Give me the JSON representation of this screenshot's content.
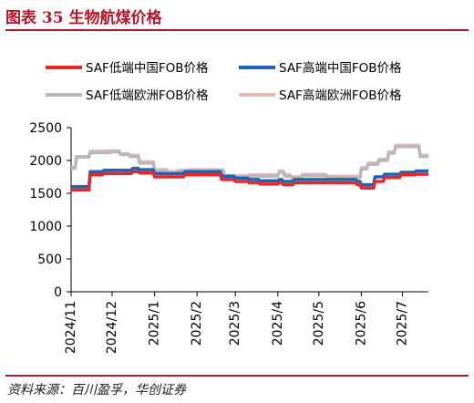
{
  "figure": {
    "title": "图表  35    生物航煤价格",
    "source": "资料来源：百川盈孚，华创证券"
  },
  "colors": {
    "accent": "#b3172b",
    "low_cn": "#e8262b",
    "high_cn": "#1f63b5",
    "low_eu": "#b9b9bb",
    "high_eu": "#e6b8b8"
  },
  "chart_data": {
    "type": "line",
    "title": "",
    "xlabel": "",
    "ylabel": "",
    "ylim": [
      0,
      2500
    ],
    "y_ticks": [
      0,
      500,
      1000,
      1500,
      2000,
      2500
    ],
    "x_range": [
      "2024-11-01",
      "2025-07-20"
    ],
    "x_ticks": [
      "2024/11",
      "2024/12",
      "2025/1",
      "2025/2",
      "2025/3",
      "2025/4",
      "2025/5",
      "2025/6",
      "2025/7"
    ],
    "x_tick_dates": [
      "2024-11-01",
      "2024-12-01",
      "2025-01-01",
      "2025-02-01",
      "2025-03-01",
      "2025-04-01",
      "2025-05-01",
      "2025-06-01",
      "2025-07-01"
    ],
    "grid": false,
    "legend_position": "top",
    "series": [
      {
        "name": "SAF低端中国FOB价格",
        "color": "#e8262b",
        "points": [
          [
            "2024-11-01",
            1550
          ],
          [
            "2024-11-14",
            1550
          ],
          [
            "2024-11-15",
            1780
          ],
          [
            "2024-11-24",
            1780
          ],
          [
            "2024-11-25",
            1800
          ],
          [
            "2024-12-15",
            1800
          ],
          [
            "2024-12-16",
            1830
          ],
          [
            "2024-12-20",
            1830
          ],
          [
            "2024-12-21",
            1810
          ],
          [
            "2024-12-31",
            1810
          ],
          [
            "2025-01-01",
            1750
          ],
          [
            "2025-01-22",
            1750
          ],
          [
            "2025-01-23",
            1780
          ],
          [
            "2025-02-18",
            1780
          ],
          [
            "2025-02-19",
            1710
          ],
          [
            "2025-02-28",
            1710
          ],
          [
            "2025-03-01",
            1680
          ],
          [
            "2025-03-10",
            1680
          ],
          [
            "2025-03-11",
            1660
          ],
          [
            "2025-03-18",
            1660
          ],
          [
            "2025-03-19",
            1640
          ],
          [
            "2025-04-01",
            1640
          ],
          [
            "2025-04-02",
            1660
          ],
          [
            "2025-04-04",
            1660
          ],
          [
            "2025-04-05",
            1630
          ],
          [
            "2025-04-12",
            1630
          ],
          [
            "2025-04-13",
            1660
          ],
          [
            "2025-05-28",
            1660
          ],
          [
            "2025-05-29",
            1630
          ],
          [
            "2025-05-31",
            1630
          ],
          [
            "2025-06-01",
            1580
          ],
          [
            "2025-06-10",
            1580
          ],
          [
            "2025-06-11",
            1680
          ],
          [
            "2025-06-17",
            1680
          ],
          [
            "2025-06-18",
            1740
          ],
          [
            "2025-06-29",
            1740
          ],
          [
            "2025-06-30",
            1780
          ],
          [
            "2025-07-10",
            1780
          ],
          [
            "2025-07-11",
            1790
          ],
          [
            "2025-07-20",
            1790
          ]
        ]
      },
      {
        "name": "SAF高端中国FOB价格",
        "color": "#1f63b5",
        "points": [
          [
            "2024-11-01",
            1600
          ],
          [
            "2024-11-14",
            1600
          ],
          [
            "2024-11-15",
            1830
          ],
          [
            "2024-11-24",
            1830
          ],
          [
            "2024-11-25",
            1850
          ],
          [
            "2024-12-15",
            1850
          ],
          [
            "2024-12-16",
            1880
          ],
          [
            "2024-12-20",
            1880
          ],
          [
            "2024-12-21",
            1860
          ],
          [
            "2024-12-31",
            1860
          ],
          [
            "2025-01-01",
            1800
          ],
          [
            "2025-01-22",
            1800
          ],
          [
            "2025-01-23",
            1830
          ],
          [
            "2025-02-18",
            1830
          ],
          [
            "2025-02-19",
            1760
          ],
          [
            "2025-02-28",
            1760
          ],
          [
            "2025-03-01",
            1730
          ],
          [
            "2025-03-10",
            1730
          ],
          [
            "2025-03-11",
            1710
          ],
          [
            "2025-03-18",
            1710
          ],
          [
            "2025-03-19",
            1690
          ],
          [
            "2025-04-01",
            1690
          ],
          [
            "2025-04-02",
            1710
          ],
          [
            "2025-04-04",
            1710
          ],
          [
            "2025-04-05",
            1680
          ],
          [
            "2025-04-12",
            1680
          ],
          [
            "2025-04-13",
            1710
          ],
          [
            "2025-05-28",
            1710
          ],
          [
            "2025-05-29",
            1680
          ],
          [
            "2025-05-31",
            1680
          ],
          [
            "2025-06-01",
            1630
          ],
          [
            "2025-06-10",
            1630
          ],
          [
            "2025-06-11",
            1750
          ],
          [
            "2025-06-17",
            1750
          ],
          [
            "2025-06-18",
            1790
          ],
          [
            "2025-06-29",
            1790
          ],
          [
            "2025-06-30",
            1820
          ],
          [
            "2025-07-10",
            1820
          ],
          [
            "2025-07-11",
            1840
          ],
          [
            "2025-07-20",
            1840
          ]
        ]
      },
      {
        "name": "SAF低端欧洲FOB价格",
        "color": "#b9b9bb",
        "points": [
          [
            "2024-11-01",
            1880
          ],
          [
            "2024-11-04",
            1880
          ],
          [
            "2024-11-05",
            2050
          ],
          [
            "2024-11-14",
            2050
          ],
          [
            "2024-11-15",
            2120
          ],
          [
            "2024-11-29",
            2120
          ],
          [
            "2024-11-30",
            2130
          ],
          [
            "2024-12-06",
            2130
          ],
          [
            "2024-12-07",
            2090
          ],
          [
            "2024-12-13",
            2090
          ],
          [
            "2024-12-14",
            2060
          ],
          [
            "2024-12-20",
            2060
          ],
          [
            "2024-12-21",
            1960
          ],
          [
            "2024-12-31",
            1960
          ],
          [
            "2025-01-01",
            1840
          ],
          [
            "2025-01-10",
            1840
          ],
          [
            "2025-01-11",
            1810
          ],
          [
            "2025-01-17",
            1810
          ],
          [
            "2025-01-18",
            1830
          ],
          [
            "2025-01-24",
            1830
          ],
          [
            "2025-01-25",
            1840
          ],
          [
            "2025-02-20",
            1840
          ],
          [
            "2025-02-21",
            1750
          ],
          [
            "2025-03-10",
            1750
          ],
          [
            "2025-03-11",
            1760
          ],
          [
            "2025-04-01",
            1760
          ],
          [
            "2025-04-02",
            1820
          ],
          [
            "2025-04-05",
            1820
          ],
          [
            "2025-04-06",
            1760
          ],
          [
            "2025-04-10",
            1760
          ],
          [
            "2025-04-11",
            1730
          ],
          [
            "2025-04-18",
            1730
          ],
          [
            "2025-04-19",
            1770
          ],
          [
            "2025-05-06",
            1770
          ],
          [
            "2025-05-07",
            1740
          ],
          [
            "2025-05-31",
            1740
          ],
          [
            "2025-06-01",
            1870
          ],
          [
            "2025-06-05",
            1870
          ],
          [
            "2025-06-06",
            1940
          ],
          [
            "2025-06-13",
            1940
          ],
          [
            "2025-06-14",
            2000
          ],
          [
            "2025-06-20",
            2000
          ],
          [
            "2025-06-21",
            2110
          ],
          [
            "2025-06-25",
            2110
          ],
          [
            "2025-06-26",
            2210
          ],
          [
            "2025-07-13",
            2210
          ],
          [
            "2025-07-14",
            2060
          ],
          [
            "2025-07-20",
            2060
          ]
        ]
      },
      {
        "name": "SAF高端欧洲FOB价格",
        "color": "#e6b8b8",
        "points": [
          [
            "2024-11-01",
            1900
          ],
          [
            "2024-11-04",
            1900
          ],
          [
            "2024-11-05",
            2060
          ],
          [
            "2024-11-14",
            2060
          ],
          [
            "2024-11-15",
            2140
          ],
          [
            "2024-11-29",
            2140
          ],
          [
            "2024-11-30",
            2150
          ],
          [
            "2024-12-06",
            2150
          ],
          [
            "2024-12-07",
            2100
          ],
          [
            "2024-12-13",
            2100
          ],
          [
            "2024-12-14",
            2080
          ],
          [
            "2024-12-20",
            2080
          ],
          [
            "2024-12-21",
            1980
          ],
          [
            "2024-12-31",
            1980
          ],
          [
            "2025-01-01",
            1860
          ],
          [
            "2025-01-10",
            1860
          ],
          [
            "2025-01-11",
            1830
          ],
          [
            "2025-01-17",
            1830
          ],
          [
            "2025-01-18",
            1850
          ],
          [
            "2025-01-24",
            1850
          ],
          [
            "2025-01-25",
            1860
          ],
          [
            "2025-02-20",
            1860
          ],
          [
            "2025-02-21",
            1770
          ],
          [
            "2025-03-10",
            1770
          ],
          [
            "2025-03-11",
            1780
          ],
          [
            "2025-04-01",
            1780
          ],
          [
            "2025-04-02",
            1840
          ],
          [
            "2025-04-05",
            1840
          ],
          [
            "2025-04-06",
            1780
          ],
          [
            "2025-04-10",
            1780
          ],
          [
            "2025-04-11",
            1750
          ],
          [
            "2025-04-18",
            1750
          ],
          [
            "2025-04-19",
            1790
          ],
          [
            "2025-05-06",
            1790
          ],
          [
            "2025-05-07",
            1760
          ],
          [
            "2025-05-31",
            1760
          ],
          [
            "2025-06-01",
            1890
          ],
          [
            "2025-06-05",
            1890
          ],
          [
            "2025-06-06",
            1960
          ],
          [
            "2025-06-13",
            1960
          ],
          [
            "2025-06-14",
            2020
          ],
          [
            "2025-06-20",
            2020
          ],
          [
            "2025-06-21",
            2130
          ],
          [
            "2025-06-25",
            2130
          ],
          [
            "2025-06-26",
            2230
          ],
          [
            "2025-07-13",
            2230
          ],
          [
            "2025-07-14",
            2080
          ],
          [
            "2025-07-20",
            2080
          ]
        ]
      }
    ]
  }
}
